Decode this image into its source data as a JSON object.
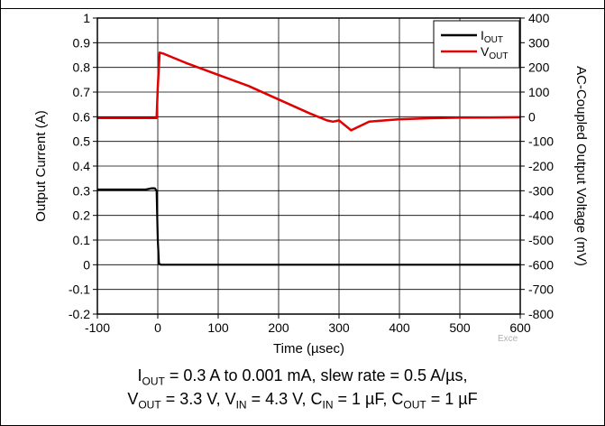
{
  "chart_data": {
    "type": "line",
    "x_label": "Time (µsec)",
    "y_left_label": "Output Current (A)",
    "y_right_label": "AC-Coupled Output Voltage (mV)",
    "x_range": [
      -100,
      600
    ],
    "y_left_range": [
      -0.2,
      1.0
    ],
    "y_right_range": [
      -800,
      400
    ],
    "x_ticks": [
      "-100",
      "0",
      "100",
      "200",
      "300",
      "400",
      "500",
      "600"
    ],
    "y_left_ticks": [
      "1",
      "0.9",
      "0.8",
      "0.7",
      "0.6",
      "0.5",
      "0.4",
      "0.3",
      "0.2",
      "0.1",
      "0",
      "-0.1",
      "-0.2"
    ],
    "y_right_ticks": [
      "400",
      "300",
      "200",
      "100",
      "0",
      "-100",
      "-200",
      "-300",
      "-400",
      "-500",
      "-600",
      "-700",
      "-800"
    ],
    "grid": true,
    "legend_position": "top-right",
    "watermark": "Exce",
    "series": [
      {
        "name": "IOUT",
        "legend_main": "I",
        "legend_sub": "OUT",
        "color": "#000000",
        "axis": "left",
        "x": [
          -100,
          -20,
          -10,
          -5,
          -2,
          0,
          2,
          5,
          600
        ],
        "y": [
          0.305,
          0.305,
          0.31,
          0.31,
          0.3,
          0.1,
          0.005,
          0.0,
          0.0
        ]
      },
      {
        "name": "VOUT",
        "legend_main": "V",
        "legend_sub": "OUT",
        "color": "#e00000",
        "axis": "right",
        "x": [
          -100,
          -5,
          -2,
          0,
          3,
          10,
          50,
          100,
          150,
          200,
          250,
          280,
          290,
          300,
          320,
          350,
          400,
          450,
          500,
          550,
          600
        ],
        "y": [
          -5,
          -5,
          -5,
          120,
          260,
          255,
          215,
          170,
          125,
          70,
          15,
          -15,
          -20,
          -15,
          -55,
          -20,
          -10,
          -6,
          -4,
          -3,
          -2
        ]
      }
    ]
  },
  "caption": {
    "line1": [
      {
        "t": "I"
      },
      {
        "s": "OUT"
      },
      {
        "t": " = 0.3 A to 0.001 mA, slew rate = 0.5 A/µs,"
      }
    ],
    "line2": [
      {
        "t": "V"
      },
      {
        "s": "OUT"
      },
      {
        "t": " = 3.3 V, V"
      },
      {
        "s": "IN"
      },
      {
        "t": " = 4.3 V, C"
      },
      {
        "s": "IN"
      },
      {
        "t": " = 1 µF, C"
      },
      {
        "s": "OUT"
      },
      {
        "t": " = 1 µF"
      }
    ]
  }
}
